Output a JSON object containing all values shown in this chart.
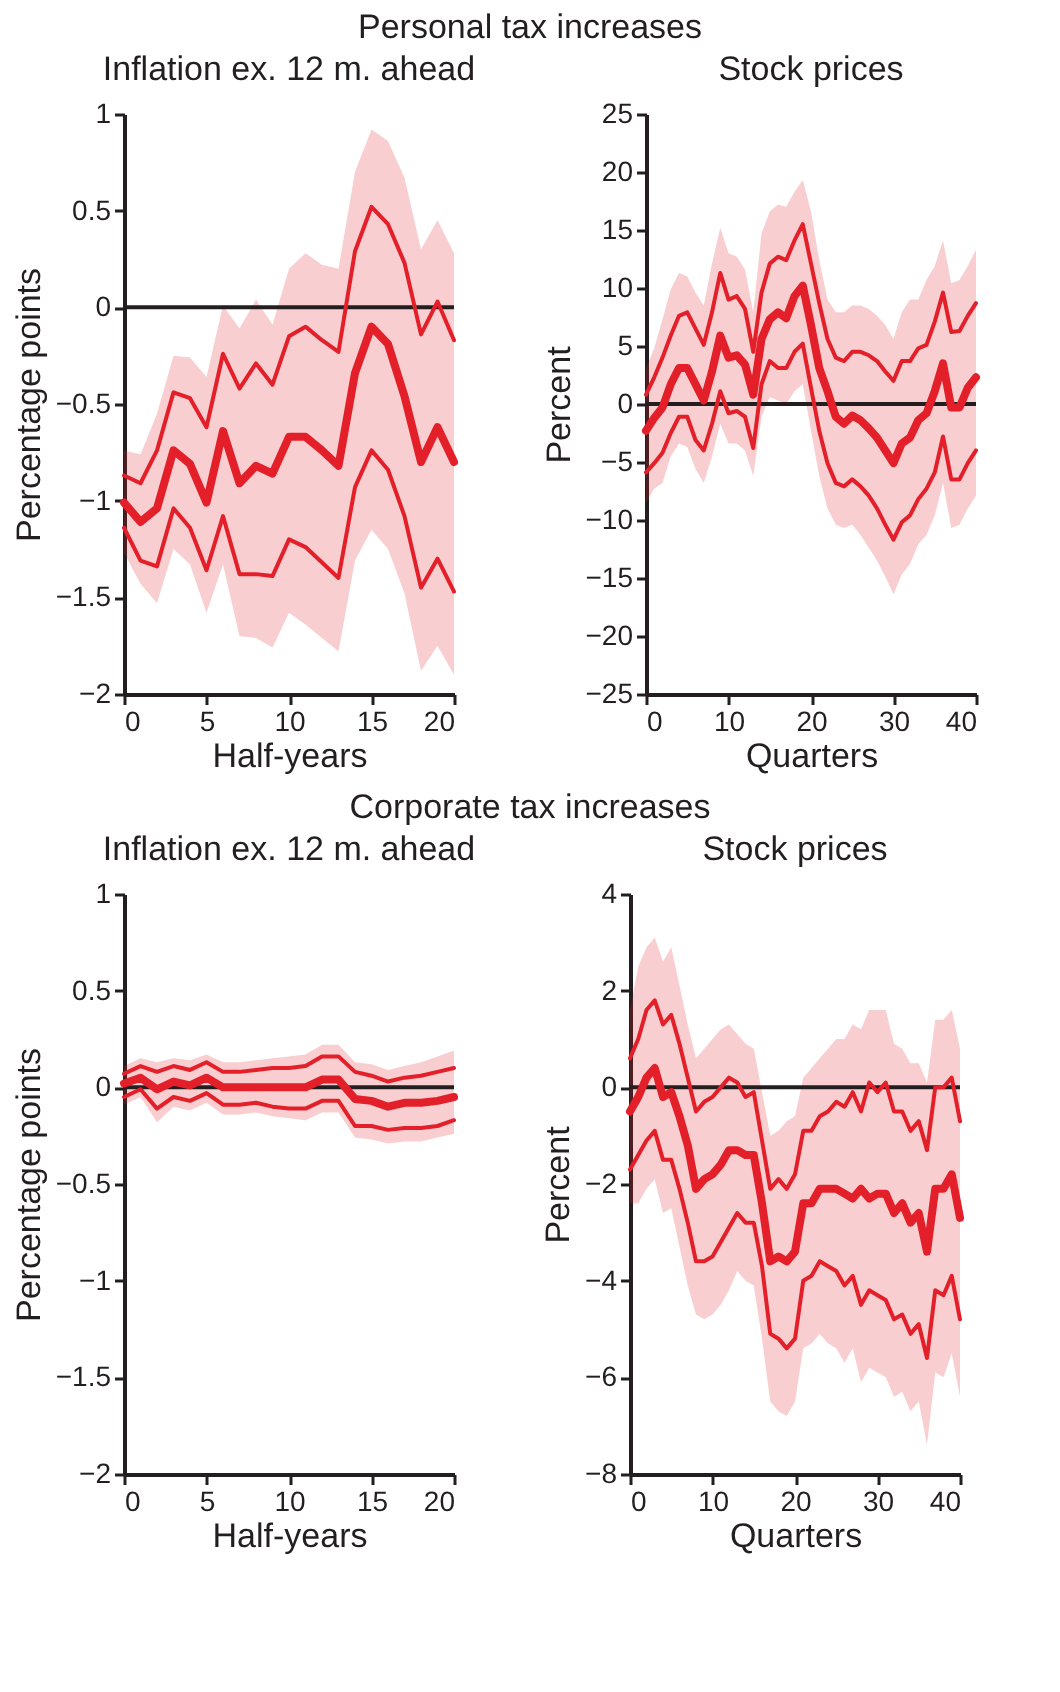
{
  "chart_data": [
    {
      "type": "line",
      "annotations": [
        "Personal tax increases"
      ],
      "title": "Inflation ex. 12 m. ahead",
      "xlabel": "Half-years",
      "ylabel": "Percentage points",
      "x": [
        0,
        1,
        2,
        3,
        4,
        5,
        6,
        7,
        8,
        9,
        10,
        11,
        12,
        13,
        14,
        15,
        16,
        17,
        18,
        19,
        20
      ],
      "xlim": [
        0,
        20
      ],
      "xticks": [
        0,
        5,
        10,
        15,
        20
      ],
      "ylim": [
        -2,
        1
      ],
      "yticks": [
        -2,
        -1.5,
        -1,
        -0.5,
        0,
        0.5,
        1
      ],
      "grid": false,
      "line_style": "solid",
      "ref_lines": [
        {
          "axis": "y",
          "value": 0,
          "color": "#231f20"
        }
      ],
      "series": [
        {
          "color": "#e3202a",
          "values": [
            -0.87,
            -0.91,
            -0.74,
            -0.44,
            -0.47,
            -0.62,
            -0.24,
            -0.42,
            -0.29,
            -0.4,
            -0.15,
            -0.1,
            -0.17,
            -0.23,
            0.29,
            0.52,
            0.43,
            0.23,
            -0.14,
            0.03,
            -0.17
          ]
        },
        {
          "color": "#e3202a",
          "values": [
            -1.01,
            -1.11,
            -1.04,
            -0.74,
            -0.81,
            -1.01,
            -0.64,
            -0.91,
            -0.82,
            -0.86,
            -0.67,
            -0.67,
            -0.74,
            -0.82,
            -0.34,
            -0.1,
            -0.19,
            -0.46,
            -0.8,
            -0.62,
            -0.8
          ],
          "lower": [
            -1.27,
            -1.43,
            -1.53,
            -1.25,
            -1.33,
            -1.58,
            -1.33,
            -1.7,
            -1.71,
            -1.76,
            -1.58,
            -1.64,
            -1.71,
            -1.78,
            -1.31,
            -1.15,
            -1.25,
            -1.48,
            -1.88,
            -1.75,
            -1.9
          ],
          "upper": [
            -0.74,
            -0.76,
            -0.55,
            -0.25,
            -0.26,
            -0.36,
            0.01,
            -0.11,
            0.04,
            -0.09,
            0.2,
            0.28,
            0.22,
            0.2,
            0.7,
            0.92,
            0.86,
            0.67,
            0.3,
            0.45,
            0.28
          ]
        },
        {
          "color": "#e3202a",
          "values": [
            -1.14,
            -1.31,
            -1.34,
            -1.04,
            -1.14,
            -1.36,
            -1.08,
            -1.38,
            -1.38,
            -1.39,
            -1.2,
            -1.24,
            -1.32,
            -1.4,
            -0.93,
            -0.74,
            -0.84,
            -1.08,
            -1.45,
            -1.3,
            -1.47
          ]
        }
      ]
    },
    {
      "type": "line",
      "title": "Stock prices",
      "xlabel": "Quarters",
      "ylabel": "Percent",
      "x": [
        0,
        1,
        2,
        3,
        4,
        5,
        6,
        7,
        8,
        9,
        10,
        11,
        12,
        13,
        14,
        15,
        16,
        17,
        18,
        19,
        20,
        21,
        22,
        23,
        24,
        25,
        26,
        27,
        28,
        29,
        30,
        31,
        32,
        33,
        34,
        35,
        36,
        37,
        38,
        39,
        40
      ],
      "xlim": [
        0,
        40
      ],
      "xticks": [
        0,
        10,
        20,
        30,
        40
      ],
      "ylim": [
        -25,
        25
      ],
      "yticks": [
        -25,
        -20,
        -15,
        -10,
        -5,
        0,
        5,
        10,
        15,
        20,
        25
      ],
      "grid": false,
      "line_style": "solid",
      "ref_lines": [
        {
          "axis": "y",
          "value": 0,
          "color": "#231f20"
        }
      ],
      "series": [
        {
          "color": "#e3202a",
          "values": [
            0.8,
            2.3,
            4.0,
            5.9,
            7.6,
            7.9,
            6.5,
            5.1,
            7.9,
            11.3,
            9.0,
            9.3,
            8.2,
            4.5,
            9.6,
            12.1,
            12.7,
            12.4,
            14.1,
            15.5,
            12.1,
            8.7,
            5.6,
            4.0,
            3.7,
            4.5,
            4.5,
            4.2,
            3.7,
            2.8,
            2.0,
            3.7,
            3.7,
            4.8,
            5.1,
            7.1,
            9.6,
            6.2,
            6.3,
            7.6,
            8.7
          ]
        },
        {
          "color": "#e3202a",
          "values": [
            -2.3,
            -1.2,
            -0.3,
            1.7,
            3.1,
            3.1,
            1.7,
            0.3,
            2.8,
            5.9,
            4.0,
            4.2,
            3.4,
            0.8,
            5.6,
            7.3,
            7.9,
            7.4,
            9.3,
            10.2,
            6.8,
            3.1,
            1.1,
            -1.1,
            -1.7,
            -1.0,
            -1.4,
            -2.1,
            -2.9,
            -4.0,
            -5.1,
            -3.4,
            -2.9,
            -1.4,
            -0.8,
            1.1,
            3.5,
            -0.3,
            -0.3,
            1.4,
            2.3
          ],
          "lower": [
            -8.5,
            -7.3,
            -6.8,
            -4.5,
            -3.4,
            -3.7,
            -5.6,
            -6.8,
            -4.5,
            -1.7,
            -3.4,
            -3.4,
            -4.0,
            -6.2,
            -1.1,
            0.6,
            0.3,
            0.0,
            1.1,
            1.7,
            -2.3,
            -6.2,
            -9.0,
            -10.4,
            -10.7,
            -10.4,
            -11.3,
            -12.4,
            -13.5,
            -14.9,
            -16.4,
            -14.7,
            -13.8,
            -12.1,
            -11.3,
            -9.6,
            -6.8,
            -10.7,
            -10.4,
            -9.0,
            -7.9
          ],
          "upper": [
            3.1,
            4.8,
            7.3,
            9.9,
            11.3,
            11.0,
            9.6,
            8.5,
            12.1,
            15.2,
            13.0,
            12.7,
            11.6,
            7.9,
            14.7,
            16.6,
            17.2,
            17.0,
            18.3,
            19.3,
            16.6,
            12.4,
            9.0,
            7.9,
            7.9,
            8.5,
            8.5,
            8.2,
            7.6,
            6.8,
            5.6,
            7.9,
            9.0,
            9.0,
            10.7,
            11.9,
            14.1,
            10.4,
            10.7,
            11.9,
            13.3
          ]
        },
        {
          "color": "#e3202a",
          "values": [
            -5.9,
            -5.1,
            -4.2,
            -2.5,
            -1.1,
            -1.1,
            -3.1,
            -4.0,
            -1.7,
            1.1,
            -0.8,
            -0.6,
            -1.1,
            -3.8,
            1.7,
            3.7,
            3.1,
            3.1,
            4.5,
            5.2,
            1.4,
            -2.3,
            -5.1,
            -6.8,
            -7.1,
            -6.5,
            -7.1,
            -7.9,
            -9.0,
            -10.4,
            -11.7,
            -10.2,
            -9.6,
            -8.2,
            -7.3,
            -5.9,
            -2.8,
            -6.5,
            -6.5,
            -5.1,
            -4.0
          ]
        }
      ]
    },
    {
      "type": "line",
      "annotations": [
        "Corporate tax increases"
      ],
      "title": "Inflation ex. 12 m. ahead",
      "xlabel": "Half-years",
      "ylabel": "Percentage points",
      "x": [
        0,
        1,
        2,
        3,
        4,
        5,
        6,
        7,
        8,
        9,
        10,
        11,
        12,
        13,
        14,
        15,
        16,
        17,
        18,
        19,
        20
      ],
      "xlim": [
        0,
        20
      ],
      "xticks": [
        0,
        5,
        10,
        15,
        20
      ],
      "ylim": [
        -2,
        1
      ],
      "yticks": [
        -2,
        -1.5,
        -1,
        -0.5,
        0,
        0.5,
        1
      ],
      "grid": false,
      "line_style": "solid",
      "ref_lines": [
        {
          "axis": "y",
          "value": 0,
          "color": "#231f20"
        }
      ],
      "series": [
        {
          "color": "#e3202a",
          "values": [
            0.07,
            0.11,
            0.08,
            0.11,
            0.09,
            0.13,
            0.08,
            0.08,
            0.09,
            0.1,
            0.1,
            0.11,
            0.16,
            0.16,
            0.08,
            0.06,
            0.03,
            0.05,
            0.06,
            0.08,
            0.1
          ]
        },
        {
          "color": "#e3202a",
          "values": [
            0.02,
            0.05,
            -0.01,
            0.03,
            0.01,
            0.05,
            0,
            0,
            0,
            0,
            0,
            0,
            0.04,
            0.04,
            -0.06,
            -0.07,
            -0.1,
            -0.08,
            -0.08,
            -0.07,
            -0.05
          ],
          "lower": [
            -0.09,
            -0.05,
            -0.18,
            -0.1,
            -0.12,
            -0.08,
            -0.14,
            -0.14,
            -0.13,
            -0.15,
            -0.16,
            -0.17,
            -0.13,
            -0.13,
            -0.26,
            -0.27,
            -0.29,
            -0.28,
            -0.28,
            -0.26,
            -0.24
          ],
          "upper": [
            0.11,
            0.15,
            0.13,
            0.15,
            0.14,
            0.17,
            0.13,
            0.13,
            0.14,
            0.15,
            0.16,
            0.17,
            0.22,
            0.22,
            0.13,
            0.12,
            0.09,
            0.11,
            0.13,
            0.16,
            0.19
          ]
        },
        {
          "color": "#e3202a",
          "values": [
            -0.05,
            -0.01,
            -0.11,
            -0.05,
            -0.07,
            -0.03,
            -0.09,
            -0.09,
            -0.08,
            -0.1,
            -0.11,
            -0.11,
            -0.07,
            -0.07,
            -0.2,
            -0.2,
            -0.22,
            -0.21,
            -0.21,
            -0.2,
            -0.17
          ]
        }
      ]
    },
    {
      "type": "line",
      "title": "Stock prices",
      "xlabel": "Quarters",
      "ylabel": "Percent",
      "x": [
        0,
        1,
        2,
        3,
        4,
        5,
        6,
        7,
        8,
        9,
        10,
        11,
        12,
        13,
        14,
        15,
        16,
        17,
        18,
        19,
        20,
        21,
        22,
        23,
        24,
        25,
        26,
        27,
        28,
        29,
        30,
        31,
        32,
        33,
        34,
        35,
        36,
        37,
        38,
        39,
        40
      ],
      "xlim": [
        0,
        40
      ],
      "xticks": [
        0,
        10,
        20,
        30,
        40
      ],
      "ylim": [
        -8,
        4
      ],
      "yticks": [
        -8,
        -6,
        -4,
        -2,
        0,
        2,
        4
      ],
      "grid": false,
      "line_style": "solid",
      "ref_lines": [
        {
          "axis": "y",
          "value": 0,
          "color": "#231f20"
        }
      ],
      "series": [
        {
          "color": "#e3202a",
          "values": [
            0.6,
            1.0,
            1.6,
            1.8,
            1.3,
            1.5,
            0.9,
            0.2,
            -0.5,
            -0.3,
            -0.2,
            0.0,
            0.2,
            0.1,
            -0.2,
            -0.1,
            -1.1,
            -2.1,
            -1.9,
            -2.1,
            -1.8,
            -0.9,
            -0.9,
            -0.6,
            -0.5,
            -0.3,
            -0.4,
            -0.1,
            -0.5,
            0.1,
            -0.1,
            0.1,
            -0.5,
            -0.5,
            -0.9,
            -0.7,
            -1.3,
            0.0,
            0.0,
            0.2,
            -0.7
          ]
        },
        {
          "color": "#e3202a",
          "values": [
            -0.5,
            -0.2,
            0.2,
            0.4,
            -0.2,
            -0.1,
            -0.6,
            -1.2,
            -2.1,
            -1.9,
            -1.8,
            -1.6,
            -1.3,
            -1.3,
            -1.4,
            -1.4,
            -2.4,
            -3.6,
            -3.5,
            -3.6,
            -3.4,
            -2.4,
            -2.4,
            -2.1,
            -2.1,
            -2.1,
            -2.2,
            -2.3,
            -2.1,
            -2.3,
            -2.2,
            -2.2,
            -2.6,
            -2.4,
            -2.8,
            -2.6,
            -3.4,
            -2.1,
            -2.1,
            -1.8,
            -2.7
          ],
          "lower": [
            -2.4,
            -2.4,
            -2.1,
            -1.9,
            -2.6,
            -2.5,
            -3.3,
            -4.1,
            -4.7,
            -4.8,
            -4.7,
            -4.5,
            -4.2,
            -3.8,
            -4.0,
            -4.1,
            -5.2,
            -6.5,
            -6.7,
            -6.8,
            -6.5,
            -5.4,
            -5.3,
            -5.1,
            -5.3,
            -5.4,
            -5.7,
            -5.4,
            -6.1,
            -5.8,
            -5.9,
            -6.0,
            -6.4,
            -6.3,
            -6.7,
            -6.5,
            -7.4,
            -5.9,
            -6.0,
            -5.5,
            -6.4
          ],
          "upper": [
            1.6,
            2.5,
            2.9,
            3.1,
            2.6,
            2.9,
            2.1,
            1.3,
            0.6,
            0.8,
            1.0,
            1.2,
            1.3,
            1.1,
            0.9,
            0.8,
            -0.1,
            -1.0,
            -0.9,
            -0.7,
            -0.6,
            0.2,
            0.4,
            0.6,
            0.8,
            1.0,
            1.0,
            1.3,
            1.2,
            1.6,
            1.6,
            1.6,
            0.9,
            0.8,
            0.5,
            0.5,
            0.1,
            1.4,
            1.4,
            1.6,
            0.8
          ]
        },
        {
          "color": "#e3202a",
          "values": [
            -1.7,
            -1.4,
            -1.1,
            -0.9,
            -1.5,
            -1.5,
            -2.1,
            -2.8,
            -3.6,
            -3.6,
            -3.5,
            -3.2,
            -2.9,
            -2.6,
            -2.8,
            -2.8,
            -3.7,
            -5.1,
            -5.2,
            -5.4,
            -5.2,
            -4.0,
            -3.9,
            -3.6,
            -3.7,
            -3.8,
            -4.1,
            -3.9,
            -4.5,
            -4.2,
            -4.3,
            -4.4,
            -4.8,
            -4.7,
            -5.1,
            -4.9,
            -5.6,
            -4.2,
            -4.3,
            -3.9,
            -4.8
          ]
        }
      ]
    }
  ]
}
